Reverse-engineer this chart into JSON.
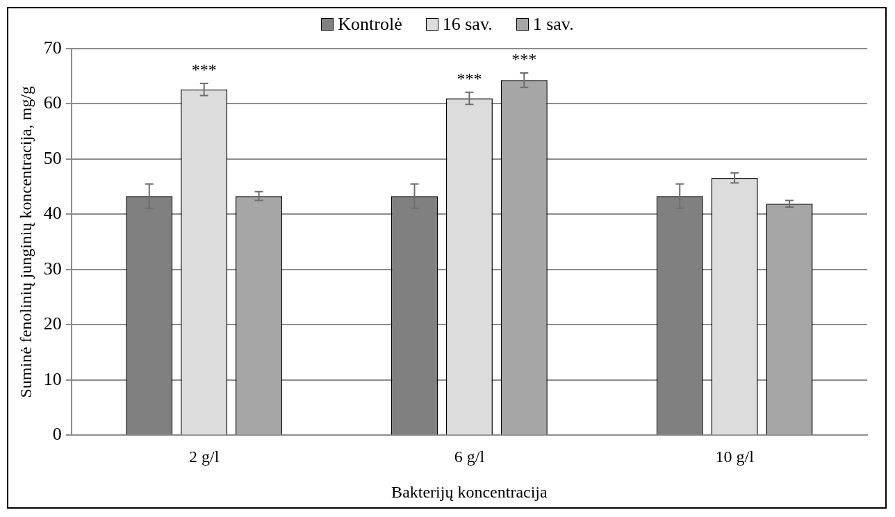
{
  "chart_data": {
    "type": "bar",
    "xlabel": "Bakterijų koncentracija",
    "ylabel": "Suminė fenolinių junginių koncentracija, mg/g",
    "categories": [
      "2 g/l",
      "6 g/l",
      "10 g/l"
    ],
    "series": [
      {
        "name": "Kontrolė",
        "color": "#808080",
        "values": [
          43.3,
          43.3,
          43.3
        ],
        "errors": [
          2.2,
          2.2,
          2.2
        ]
      },
      {
        "name": "16 sav.",
        "color": "#dcdcdc",
        "values": [
          62.6,
          61.0,
          46.6
        ],
        "errors": [
          1.1,
          1.1,
          0.9
        ],
        "value_labels": [
          "***",
          "***",
          null
        ]
      },
      {
        "name": "1 sav.",
        "color": "#a6a6a6",
        "values": [
          43.3,
          64.3,
          41.9
        ],
        "errors": [
          0.8,
          1.3,
          0.6
        ],
        "value_labels": [
          null,
          "***",
          null
        ]
      }
    ],
    "ylim": [
      0,
      70
    ],
    "yticks": [
      0,
      10,
      20,
      30,
      40,
      50,
      60,
      70
    ],
    "grid": "y",
    "legend": "top"
  }
}
